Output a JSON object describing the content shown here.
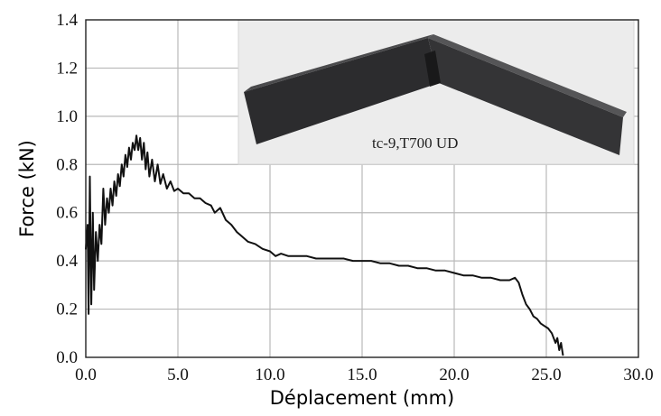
{
  "chart_data": {
    "type": "line",
    "title": "",
    "xlabel": "Déplacement (mm)",
    "ylabel": "Force (kN)",
    "xlim": [
      0,
      30
    ],
    "ylim": [
      0,
      1.4
    ],
    "x_ticks": [
      "0.0",
      "5.0",
      "10.0",
      "15.0",
      "20.0",
      "25.0",
      "30.0"
    ],
    "y_ticks": [
      "0.0",
      "0.2",
      "0.4",
      "0.6",
      "0.8",
      "1.0",
      "1.2",
      "1.4"
    ],
    "grid": true,
    "series": [
      {
        "color": "#111111",
        "points": [
          [
            0.0,
            0.45
          ],
          [
            0.1,
            0.55
          ],
          [
            0.15,
            0.18
          ],
          [
            0.22,
            0.75
          ],
          [
            0.3,
            0.22
          ],
          [
            0.38,
            0.6
          ],
          [
            0.45,
            0.28
          ],
          [
            0.55,
            0.52
          ],
          [
            0.65,
            0.4
          ],
          [
            0.75,
            0.55
          ],
          [
            0.85,
            0.47
          ],
          [
            0.95,
            0.7
          ],
          [
            1.05,
            0.55
          ],
          [
            1.15,
            0.66
          ],
          [
            1.25,
            0.6
          ],
          [
            1.35,
            0.7
          ],
          [
            1.45,
            0.63
          ],
          [
            1.55,
            0.73
          ],
          [
            1.65,
            0.67
          ],
          [
            1.75,
            0.76
          ],
          [
            1.85,
            0.71
          ],
          [
            1.95,
            0.8
          ],
          [
            2.05,
            0.75
          ],
          [
            2.15,
            0.84
          ],
          [
            2.25,
            0.79
          ],
          [
            2.35,
            0.87
          ],
          [
            2.45,
            0.82
          ],
          [
            2.55,
            0.89
          ],
          [
            2.65,
            0.86
          ],
          [
            2.75,
            0.92
          ],
          [
            2.85,
            0.86
          ],
          [
            2.95,
            0.91
          ],
          [
            3.05,
            0.82
          ],
          [
            3.15,
            0.89
          ],
          [
            3.25,
            0.78
          ],
          [
            3.35,
            0.85
          ],
          [
            3.45,
            0.75
          ],
          [
            3.6,
            0.82
          ],
          [
            3.75,
            0.73
          ],
          [
            3.9,
            0.8
          ],
          [
            4.05,
            0.72
          ],
          [
            4.2,
            0.76
          ],
          [
            4.4,
            0.7
          ],
          [
            4.6,
            0.73
          ],
          [
            4.8,
            0.69
          ],
          [
            5.0,
            0.7
          ],
          [
            5.3,
            0.68
          ],
          [
            5.6,
            0.68
          ],
          [
            5.9,
            0.66
          ],
          [
            6.2,
            0.66
          ],
          [
            6.5,
            0.64
          ],
          [
            6.8,
            0.63
          ],
          [
            7.0,
            0.6
          ],
          [
            7.3,
            0.62
          ],
          [
            7.6,
            0.57
          ],
          [
            7.9,
            0.55
          ],
          [
            8.2,
            0.52
          ],
          [
            8.5,
            0.5
          ],
          [
            8.8,
            0.48
          ],
          [
            9.2,
            0.47
          ],
          [
            9.6,
            0.45
          ],
          [
            10.0,
            0.44
          ],
          [
            10.3,
            0.42
          ],
          [
            10.6,
            0.43
          ],
          [
            11.0,
            0.42
          ],
          [
            11.5,
            0.42
          ],
          [
            12.0,
            0.42
          ],
          [
            12.5,
            0.41
          ],
          [
            13.0,
            0.41
          ],
          [
            13.5,
            0.41
          ],
          [
            14.0,
            0.41
          ],
          [
            14.5,
            0.4
          ],
          [
            15.0,
            0.4
          ],
          [
            15.5,
            0.4
          ],
          [
            16.0,
            0.39
          ],
          [
            16.5,
            0.39
          ],
          [
            17.0,
            0.38
          ],
          [
            17.5,
            0.38
          ],
          [
            18.0,
            0.37
          ],
          [
            18.5,
            0.37
          ],
          [
            19.0,
            0.36
          ],
          [
            19.5,
            0.36
          ],
          [
            20.0,
            0.35
          ],
          [
            20.5,
            0.34
          ],
          [
            21.0,
            0.34
          ],
          [
            21.5,
            0.33
          ],
          [
            22.0,
            0.33
          ],
          [
            22.5,
            0.32
          ],
          [
            23.0,
            0.32
          ],
          [
            23.3,
            0.33
          ],
          [
            23.5,
            0.31
          ],
          [
            23.7,
            0.26
          ],
          [
            23.9,
            0.22
          ],
          [
            24.1,
            0.2
          ],
          [
            24.3,
            0.17
          ],
          [
            24.5,
            0.16
          ],
          [
            24.7,
            0.14
          ],
          [
            24.9,
            0.13
          ],
          [
            25.1,
            0.12
          ],
          [
            25.3,
            0.1
          ],
          [
            25.5,
            0.06
          ],
          [
            25.6,
            0.08
          ],
          [
            25.7,
            0.03
          ],
          [
            25.8,
            0.06
          ],
          [
            25.9,
            0.01
          ]
        ]
      }
    ],
    "inset": {
      "caption": "tc-9,T700 UD"
    }
  }
}
